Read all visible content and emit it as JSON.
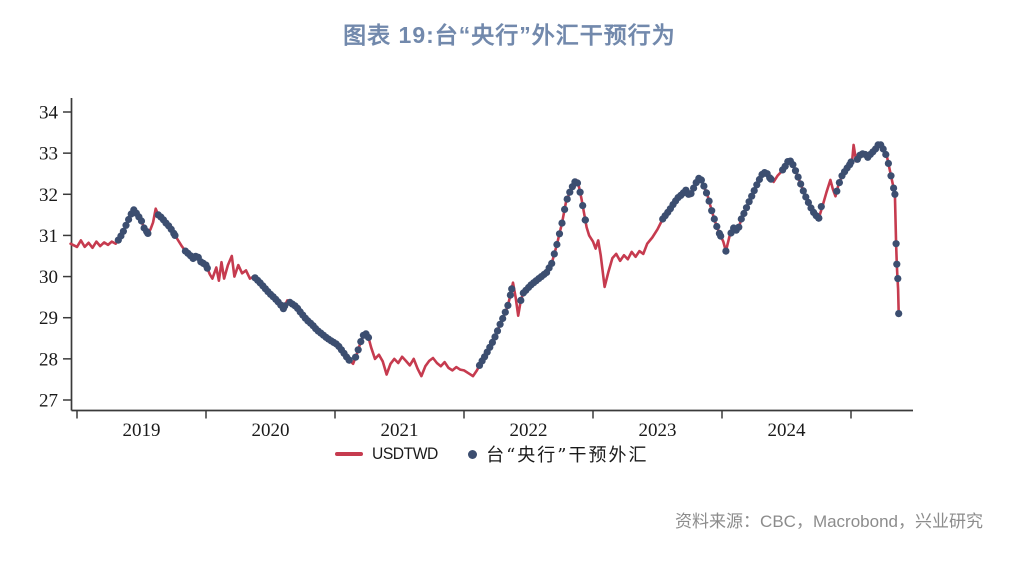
{
  "title": "图表 19:台“央行”外汇干预行为",
  "source": "资料来源：CBC，Macrobond，兴业研究",
  "legend": [
    {
      "label": "USDTWD",
      "marker": "line",
      "color": "#C63B4F"
    },
    {
      "label": "台“央行”干预外汇",
      "marker": "dot",
      "color": "#3C4E70"
    }
  ],
  "colors": {
    "title": "#7289AC",
    "line": "#C63B4F",
    "dot": "#3C4E70",
    "axis": "#3A3A3A",
    "tick_label": "#1A1A1A",
    "source": "#8C8C8C",
    "background": "#FFFFFF"
  },
  "chart_data": {
    "type": "line",
    "title": "图表 19:台“央行”外汇干预行为",
    "xlabel": "",
    "ylabel": "",
    "grid": false,
    "legend_position": "bottom-center",
    "x_axis": {
      "unit": "year",
      "range": [
        2018.93,
        2025.48
      ],
      "tick_years": [
        2019,
        2020,
        2021,
        2022,
        2023,
        2024,
        2025
      ],
      "year_labels": [
        "2019",
        "2020",
        "2021",
        "2022",
        "2023",
        "2024"
      ]
    },
    "y_axis": {
      "range": [
        27,
        34
      ],
      "ticks": [
        34,
        33,
        32,
        31,
        30,
        29,
        28,
        27
      ]
    },
    "series": [
      {
        "name": "USDTWD",
        "type": "line",
        "color": "#C63B4F",
        "points": [
          [
            2018.95,
            30.8
          ],
          [
            2019.0,
            30.72
          ],
          [
            2019.03,
            30.88
          ],
          [
            2019.06,
            30.72
          ],
          [
            2019.09,
            30.82
          ],
          [
            2019.12,
            30.7
          ],
          [
            2019.15,
            30.85
          ],
          [
            2019.18,
            30.74
          ],
          [
            2019.21,
            30.83
          ],
          [
            2019.24,
            30.77
          ],
          [
            2019.27,
            30.85
          ],
          [
            2019.3,
            30.8
          ],
          [
            2019.33,
            30.93
          ],
          [
            2019.36,
            31.1
          ],
          [
            2019.39,
            31.32
          ],
          [
            2019.42,
            31.52
          ],
          [
            2019.44,
            31.62
          ],
          [
            2019.47,
            31.5
          ],
          [
            2019.5,
            31.35
          ],
          [
            2019.52,
            31.18
          ],
          [
            2019.55,
            31.05
          ],
          [
            2019.57,
            31.15
          ],
          [
            2019.59,
            31.32
          ],
          [
            2019.61,
            31.65
          ],
          [
            2019.63,
            31.5
          ],
          [
            2019.66,
            31.42
          ],
          [
            2019.69,
            31.3
          ],
          [
            2019.72,
            31.2
          ],
          [
            2019.75,
            31.05
          ],
          [
            2019.78,
            30.9
          ],
          [
            2019.81,
            30.75
          ],
          [
            2019.84,
            30.62
          ],
          [
            2019.87,
            30.54
          ],
          [
            2019.9,
            30.44
          ],
          [
            2019.93,
            30.52
          ],
          [
            2019.96,
            30.36
          ],
          [
            2020.0,
            30.28
          ],
          [
            2020.03,
            30.05
          ],
          [
            2020.05,
            29.95
          ],
          [
            2020.08,
            30.22
          ],
          [
            2020.1,
            29.9
          ],
          [
            2020.12,
            30.35
          ],
          [
            2020.14,
            29.95
          ],
          [
            2020.17,
            30.28
          ],
          [
            2020.2,
            30.5
          ],
          [
            2020.22,
            30.0
          ],
          [
            2020.25,
            30.28
          ],
          [
            2020.28,
            30.08
          ],
          [
            2020.31,
            30.15
          ],
          [
            2020.34,
            29.95
          ],
          [
            2020.37,
            30.0
          ],
          [
            2020.41,
            29.88
          ],
          [
            2020.45,
            29.74
          ],
          [
            2020.49,
            29.6
          ],
          [
            2020.53,
            29.48
          ],
          [
            2020.57,
            29.35
          ],
          [
            2020.6,
            29.22
          ],
          [
            2020.63,
            29.42
          ],
          [
            2020.66,
            29.35
          ],
          [
            2020.7,
            29.27
          ],
          [
            2020.74,
            29.1
          ],
          [
            2020.78,
            28.95
          ],
          [
            2020.82,
            28.84
          ],
          [
            2020.86,
            28.7
          ],
          [
            2020.9,
            28.6
          ],
          [
            2020.94,
            28.5
          ],
          [
            2020.98,
            28.42
          ],
          [
            2021.02,
            28.34
          ],
          [
            2021.06,
            28.18
          ],
          [
            2021.1,
            28.0
          ],
          [
            2021.14,
            27.88
          ],
          [
            2021.17,
            28.12
          ],
          [
            2021.2,
            28.42
          ],
          [
            2021.23,
            28.65
          ],
          [
            2021.26,
            28.52
          ],
          [
            2021.28,
            28.28
          ],
          [
            2021.31,
            28.0
          ],
          [
            2021.34,
            28.1
          ],
          [
            2021.37,
            27.94
          ],
          [
            2021.4,
            27.62
          ],
          [
            2021.43,
            27.88
          ],
          [
            2021.46,
            28.0
          ],
          [
            2021.49,
            27.9
          ],
          [
            2021.52,
            28.05
          ],
          [
            2021.55,
            27.95
          ],
          [
            2021.58,
            27.84
          ],
          [
            2021.61,
            28.0
          ],
          [
            2021.64,
            27.76
          ],
          [
            2021.67,
            27.58
          ],
          [
            2021.7,
            27.82
          ],
          [
            2021.73,
            27.95
          ],
          [
            2021.76,
            28.02
          ],
          [
            2021.79,
            27.9
          ],
          [
            2021.82,
            27.82
          ],
          [
            2021.85,
            27.92
          ],
          [
            2021.88,
            27.78
          ],
          [
            2021.91,
            27.72
          ],
          [
            2021.94,
            27.8
          ],
          [
            2021.97,
            27.74
          ],
          [
            2022.0,
            27.72
          ],
          [
            2022.04,
            27.64
          ],
          [
            2022.07,
            27.58
          ],
          [
            2022.1,
            27.72
          ],
          [
            2022.13,
            27.9
          ],
          [
            2022.16,
            28.05
          ],
          [
            2022.19,
            28.22
          ],
          [
            2022.22,
            28.4
          ],
          [
            2022.25,
            28.6
          ],
          [
            2022.28,
            28.84
          ],
          [
            2022.31,
            29.05
          ],
          [
            2022.34,
            29.3
          ],
          [
            2022.36,
            29.55
          ],
          [
            2022.38,
            29.85
          ],
          [
            2022.4,
            29.5
          ],
          [
            2022.42,
            29.05
          ],
          [
            2022.44,
            29.42
          ],
          [
            2022.46,
            29.6
          ],
          [
            2022.49,
            29.7
          ],
          [
            2022.52,
            29.8
          ],
          [
            2022.56,
            29.9
          ],
          [
            2022.6,
            30.0
          ],
          [
            2022.64,
            30.1
          ],
          [
            2022.68,
            30.32
          ],
          [
            2022.72,
            30.78
          ],
          [
            2022.76,
            31.3
          ],
          [
            2022.79,
            31.8
          ],
          [
            2022.82,
            32.05
          ],
          [
            2022.85,
            32.25
          ],
          [
            2022.87,
            32.35
          ],
          [
            2022.89,
            32.2
          ],
          [
            2022.91,
            31.9
          ],
          [
            2022.93,
            31.55
          ],
          [
            2022.95,
            31.2
          ],
          [
            2022.97,
            31.0
          ],
          [
            2023.0,
            30.85
          ],
          [
            2023.02,
            30.68
          ],
          [
            2023.04,
            30.88
          ],
          [
            2023.06,
            30.52
          ],
          [
            2023.09,
            29.75
          ],
          [
            2023.12,
            30.12
          ],
          [
            2023.15,
            30.45
          ],
          [
            2023.18,
            30.55
          ],
          [
            2023.21,
            30.38
          ],
          [
            2023.24,
            30.52
          ],
          [
            2023.27,
            30.42
          ],
          [
            2023.3,
            30.6
          ],
          [
            2023.33,
            30.48
          ],
          [
            2023.36,
            30.62
          ],
          [
            2023.39,
            30.55
          ],
          [
            2023.42,
            30.8
          ],
          [
            2023.46,
            30.95
          ],
          [
            2023.5,
            31.15
          ],
          [
            2023.54,
            31.4
          ],
          [
            2023.57,
            31.52
          ],
          [
            2023.6,
            31.65
          ],
          [
            2023.63,
            31.8
          ],
          [
            2023.66,
            31.92
          ],
          [
            2023.69,
            32.0
          ],
          [
            2023.72,
            32.1
          ],
          [
            2023.75,
            31.95
          ],
          [
            2023.78,
            32.15
          ],
          [
            2023.81,
            32.35
          ],
          [
            2023.83,
            32.42
          ],
          [
            2023.86,
            32.2
          ],
          [
            2023.89,
            31.95
          ],
          [
            2023.92,
            31.6
          ],
          [
            2023.95,
            31.3
          ],
          [
            2023.98,
            31.05
          ],
          [
            2024.01,
            30.85
          ],
          [
            2024.03,
            30.62
          ],
          [
            2024.06,
            31.0
          ],
          [
            2024.09,
            31.18
          ],
          [
            2024.12,
            31.1
          ],
          [
            2024.15,
            31.4
          ],
          [
            2024.18,
            31.6
          ],
          [
            2024.21,
            31.82
          ],
          [
            2024.24,
            32.02
          ],
          [
            2024.28,
            32.3
          ],
          [
            2024.31,
            32.48
          ],
          [
            2024.34,
            32.55
          ],
          [
            2024.37,
            32.4
          ],
          [
            2024.4,
            32.3
          ],
          [
            2024.43,
            32.45
          ],
          [
            2024.46,
            32.55
          ],
          [
            2024.49,
            32.68
          ],
          [
            2024.52,
            32.85
          ],
          [
            2024.55,
            32.72
          ],
          [
            2024.58,
            32.5
          ],
          [
            2024.61,
            32.25
          ],
          [
            2024.64,
            32.0
          ],
          [
            2024.67,
            31.8
          ],
          [
            2024.7,
            31.6
          ],
          [
            2024.73,
            31.48
          ],
          [
            2024.75,
            31.42
          ],
          [
            2024.78,
            31.72
          ],
          [
            2024.81,
            32.05
          ],
          [
            2024.84,
            32.35
          ],
          [
            2024.86,
            32.12
          ],
          [
            2024.88,
            31.95
          ],
          [
            2024.9,
            32.2
          ],
          [
            2024.93,
            32.45
          ],
          [
            2024.96,
            32.6
          ],
          [
            2024.99,
            32.72
          ],
          [
            2025.01,
            32.85
          ],
          [
            2025.02,
            33.2
          ],
          [
            2025.04,
            32.8
          ],
          [
            2025.07,
            32.95
          ],
          [
            2025.1,
            33.0
          ],
          [
            2025.13,
            32.9
          ],
          [
            2025.16,
            33.0
          ],
          [
            2025.19,
            33.1
          ],
          [
            2025.22,
            33.25
          ],
          [
            2025.25,
            33.1
          ],
          [
            2025.28,
            32.9
          ],
          [
            2025.3,
            32.6
          ],
          [
            2025.32,
            32.3
          ],
          [
            2025.34,
            32.0
          ],
          [
            2025.35,
            30.8
          ],
          [
            2025.355,
            30.3
          ],
          [
            2025.36,
            30.0
          ],
          [
            2025.365,
            29.7
          ],
          [
            2025.37,
            29.1
          ]
        ]
      },
      {
        "name": "台“央行”干预外汇",
        "type": "scatter-overlay",
        "color": "#3C4E70",
        "intervention_periods": [
          [
            2019.32,
            2019.55
          ],
          [
            2019.63,
            2019.76
          ],
          [
            2019.84,
            2020.01
          ],
          [
            2020.38,
            2020.61
          ],
          [
            2020.65,
            2021.11
          ],
          [
            2021.16,
            2021.26
          ],
          [
            2022.12,
            2022.37
          ],
          [
            2022.44,
            2022.94
          ],
          [
            2023.54,
            2023.99
          ],
          [
            2024.07,
            2024.38
          ],
          [
            2024.47,
            2024.75
          ],
          [
            2024.89,
            2025.0
          ],
          [
            2025.05,
            2025.34
          ]
        ],
        "extra_points": [
          [
            2024.03,
            30.62
          ],
          [
            2024.77,
            31.7
          ],
          [
            2025.35,
            30.8
          ],
          [
            2025.355,
            30.3
          ],
          [
            2025.363,
            29.95
          ],
          [
            2025.37,
            29.1
          ]
        ]
      }
    ]
  }
}
